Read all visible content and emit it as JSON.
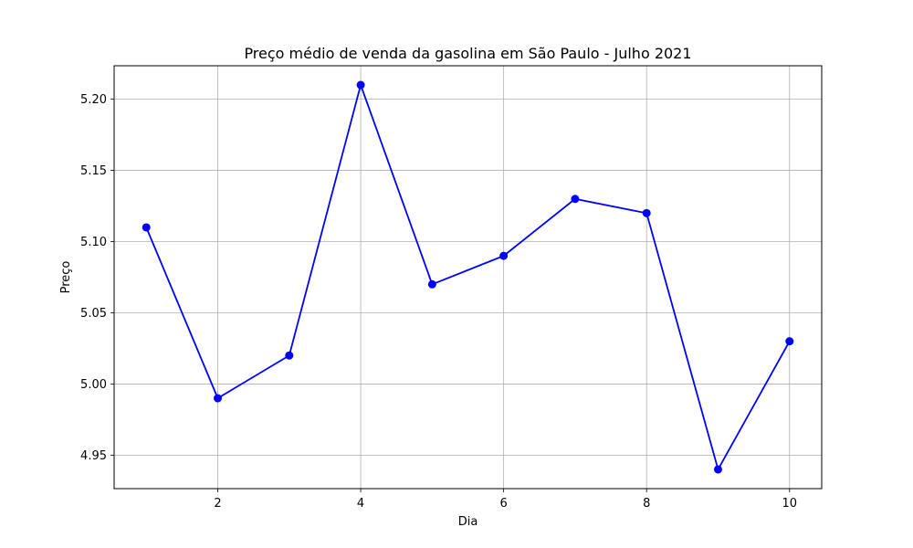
{
  "chart_data": {
    "type": "line",
    "title": "Preço médio de venda da gasolina em São Paulo - Julho 2021",
    "xlabel": "Dia",
    "ylabel": "Preço",
    "x": [
      1,
      2,
      3,
      4,
      5,
      6,
      7,
      8,
      9,
      10
    ],
    "series": [
      {
        "values": [
          5.11,
          4.99,
          5.02,
          5.21,
          5.07,
          5.09,
          5.13,
          5.12,
          4.94,
          5.03
        ],
        "color": "#0000ff",
        "marker": "circle"
      }
    ],
    "xticks": [
      2,
      4,
      6,
      8,
      10
    ],
    "xtick_labels": [
      "2",
      "4",
      "6",
      "8",
      "10"
    ],
    "yticks": [
      4.95,
      5.0,
      5.05,
      5.1,
      5.15,
      5.2
    ],
    "ytick_labels": [
      "4.95",
      "5.00",
      "5.05",
      "5.10",
      "5.15",
      "5.20"
    ],
    "xlim": [
      0.55,
      10.45
    ],
    "ylim": [
      4.9265,
      5.2235
    ],
    "grid": true
  }
}
